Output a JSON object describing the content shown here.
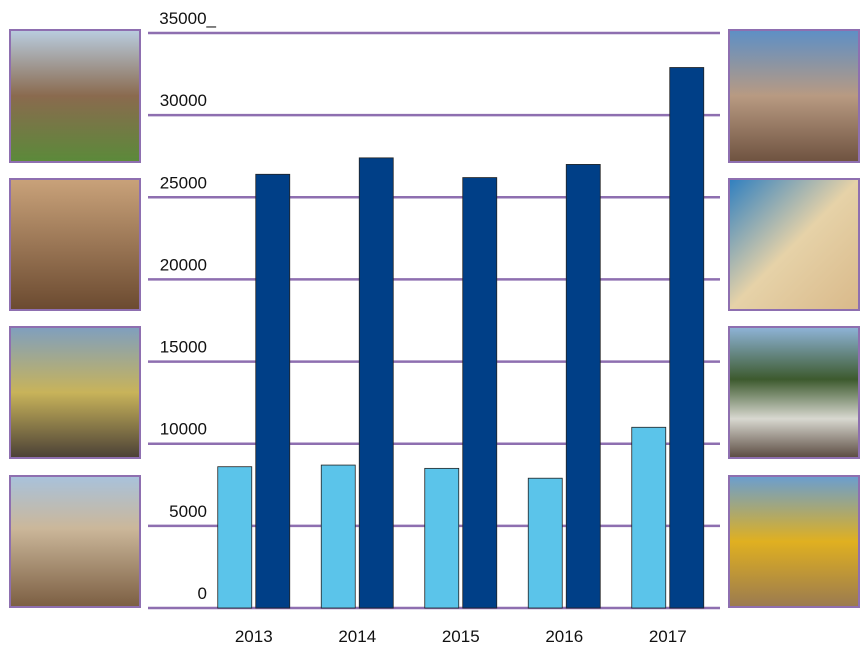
{
  "chart_data": {
    "type": "bar",
    "categories": [
      "2013",
      "2014",
      "2015",
      "2016",
      "2017"
    ],
    "series": [
      {
        "color": "#5bc4ea",
        "values": [
          8600,
          8700,
          8500,
          7900,
          11000
        ]
      },
      {
        "color": "#003f87",
        "values": [
          26400,
          27400,
          26200,
          27000,
          32900
        ]
      }
    ],
    "ylim": [
      0,
      35000
    ],
    "yticks": [
      0,
      5000,
      10000,
      15000,
      20000,
      25000,
      30000,
      {
        "value": 35000,
        "label": "35000_"
      }
    ],
    "grid": true,
    "grid_color": "#8e6fb0"
  }
}
